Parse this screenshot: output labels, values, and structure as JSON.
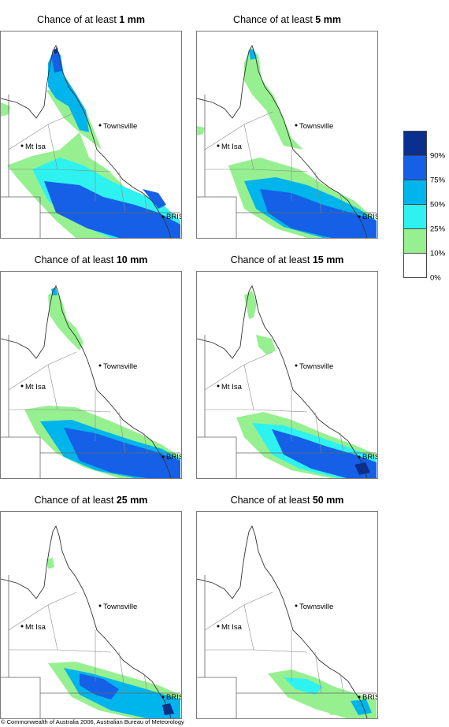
{
  "panels": [
    {
      "prefix": "Chance of at least",
      "amount": "1 mm",
      "level": 1
    },
    {
      "prefix": "Chance of at least",
      "amount": "5 mm",
      "level": 2
    },
    {
      "prefix": "Chance of at least",
      "amount": "10 mm",
      "level": 3
    },
    {
      "prefix": "Chance of at least",
      "amount": "15 mm",
      "level": 4
    },
    {
      "prefix": "Chance of at least",
      "amount": "25 mm",
      "level": 5
    },
    {
      "prefix": "Chance of at least",
      "amount": "50 mm",
      "level": 6
    }
  ],
  "places": {
    "townsville": "Townsville",
    "mt_isa": "Mt Isa",
    "bris": "BRIS"
  },
  "legend": {
    "labels": [
      "90%",
      "75%",
      "50%",
      "25%",
      "10%",
      "0%"
    ],
    "colors": [
      "#0a2f8f",
      "#1560e6",
      "#00b4ec",
      "#2ef2f0",
      "#96f090",
      "#ffffff"
    ]
  },
  "copyright": "© Commonwealth of Australia 2006, Australian Bureau of Meteorology"
}
